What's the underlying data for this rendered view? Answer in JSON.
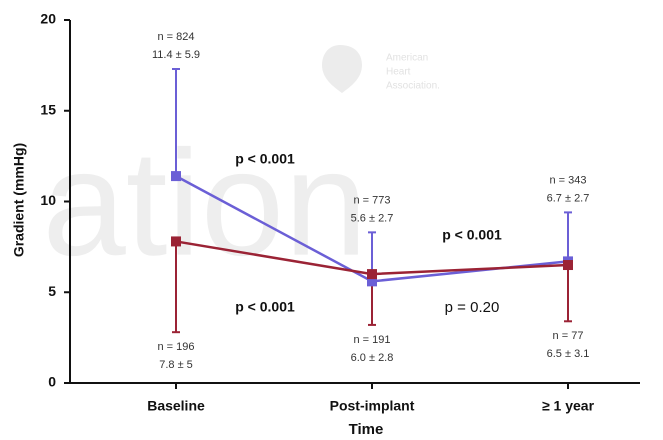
{
  "chart_data": {
    "type": "line",
    "xlabel": "Time",
    "ylabel": "Gradient (mmHg)",
    "categories": [
      "Baseline",
      "Post-implant",
      "≥ 1 year"
    ],
    "ylim": [
      0,
      20
    ],
    "yticks": [
      0,
      5,
      10,
      15,
      20
    ],
    "series": [
      {
        "color": "#6b5fd6",
        "values": [
          11.4,
          5.6,
          6.7
        ],
        "errors": [
          5.9,
          2.7,
          2.7
        ],
        "error_side": "up",
        "n_labels": [
          "n = 824",
          "n = 773",
          "n = 343"
        ],
        "value_labels": [
          "11.4 ± 5.9",
          "5.6 ± 2.7",
          "6.7 ± 2.7"
        ]
      },
      {
        "color": "#9b2335",
        "values": [
          7.8,
          6.0,
          6.5
        ],
        "errors": [
          5,
          2.8,
          3.1
        ],
        "error_side": "down",
        "n_labels": [
          "n = 196",
          "n = 191",
          "n = 77"
        ],
        "value_labels": [
          "7.8 ± 5",
          "6.0 ± 2.8",
          "6.5 ± 3.1"
        ]
      }
    ],
    "annotations": [
      {
        "text": "p < 0.001",
        "bold": true
      },
      {
        "text": "p < 0.001",
        "bold": true
      },
      {
        "text": "p < 0.001",
        "bold": true
      },
      {
        "text": "p = 0.20",
        "bold": false
      }
    ],
    "watermark": {
      "logo_text": [
        "American",
        "Heart",
        "Association."
      ],
      "background_text": "ation"
    }
  }
}
